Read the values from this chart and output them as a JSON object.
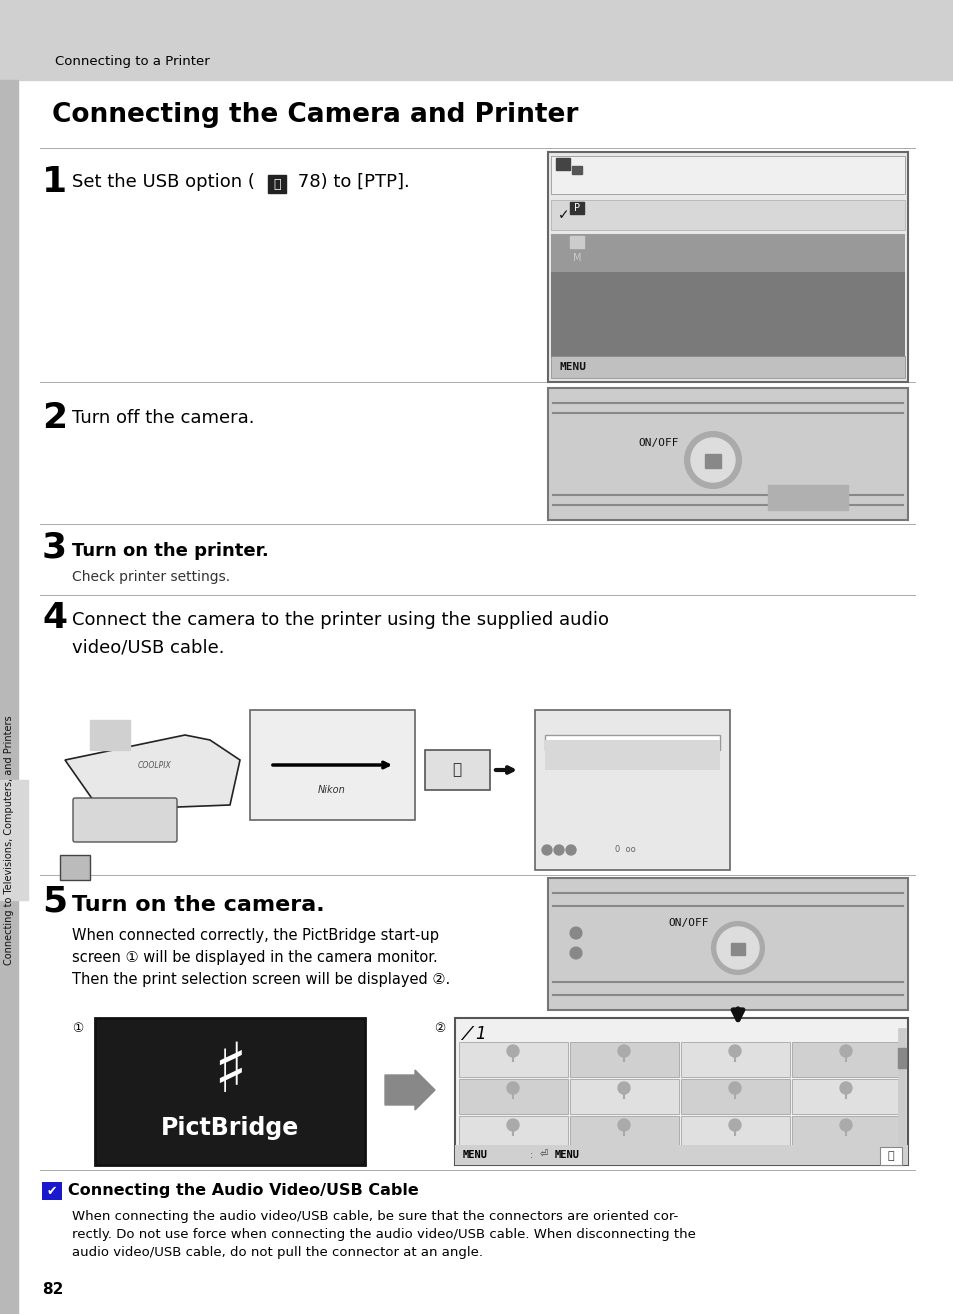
{
  "page_bg": "#ffffff",
  "header_bg": "#d0d0d0",
  "header_text": "Connecting to a Printer",
  "title": "Connecting the Camera and Printer",
  "sidebar_text": "Connecting to Televisions, Computers, and Printers",
  "sidebar_bg": "#b8b8b8",
  "sidebar_light_bg": "#d8d8d8",
  "page_number": "82",
  "divider_color": "#aaaaaa",
  "note_icon_color": "#1a1aaa",
  "note_title": "Connecting the Audio Video/USB Cable",
  "note_text_line1": "When connecting the audio video/USB cable, be sure that the connectors are oriented cor-",
  "note_text_line2": "rectly. Do not use force when connecting the audio video/USB cable. When disconnecting the",
  "note_text_line3": "audio video/USB cable, do not pull the connector at an angle."
}
